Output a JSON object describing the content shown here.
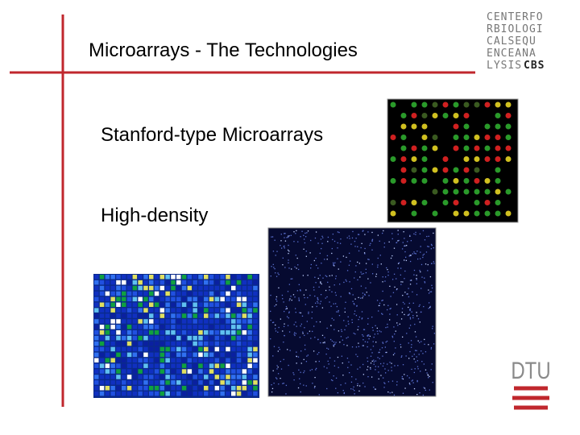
{
  "slide": {
    "title": "Microarrays - The Technologies",
    "items": [
      "Stanford-type Microarrays",
      "High-density"
    ],
    "logo": {
      "lines": [
        "CENTERFO",
        "RBIOLOGI",
        "CALSEQU",
        "ENCEANA",
        "LYSIS"
      ],
      "tag": "CBS"
    },
    "footer_logo": "DTU"
  }
}
